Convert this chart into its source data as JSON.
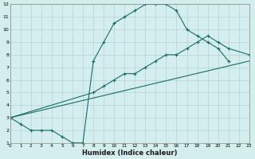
{
  "xlabel": "Humidex (Indice chaleur)",
  "bg_color": "#d4eded",
  "grid_color": "#b8d8d8",
  "line_color": "#1a6b6b",
  "xlim": [
    0,
    23
  ],
  "ylim": [
    1,
    12
  ],
  "xtick_labels": [
    "0",
    "1",
    "2",
    "3",
    "4",
    "5",
    "6",
    "7",
    "8",
    "9",
    "10",
    "11",
    "12",
    "13",
    "14",
    "15",
    "16",
    "17",
    "18",
    "19",
    "20",
    "21",
    "22",
    "23"
  ],
  "ytick_labels": [
    "1",
    "2",
    "3",
    "4",
    "5",
    "6",
    "7",
    "8",
    "9",
    "10",
    "11",
    "12"
  ],
  "series1_x": [
    0,
    1,
    2,
    3,
    4,
    5,
    6,
    7,
    8,
    9,
    10,
    11,
    12,
    13,
    14,
    15,
    16,
    17,
    18,
    19,
    20,
    21
  ],
  "series1_y": [
    3,
    2.5,
    2,
    2,
    2,
    1.5,
    1,
    1,
    7.5,
    9,
    10.5,
    11,
    11.5,
    12,
    12,
    12,
    11.5,
    10,
    9.5,
    9,
    8.5,
    7.5
  ],
  "series2_x": [
    0,
    8,
    9,
    10,
    11,
    12,
    13,
    14,
    15,
    16,
    17,
    18,
    19,
    20,
    21,
    23
  ],
  "series2_y": [
    3,
    5,
    5.5,
    6,
    6.5,
    6.5,
    7,
    7.5,
    8,
    8,
    8.5,
    9,
    9.5,
    9,
    8.5,
    8
  ],
  "series3_x": [
    0,
    23
  ],
  "series3_y": [
    3,
    7.5
  ]
}
